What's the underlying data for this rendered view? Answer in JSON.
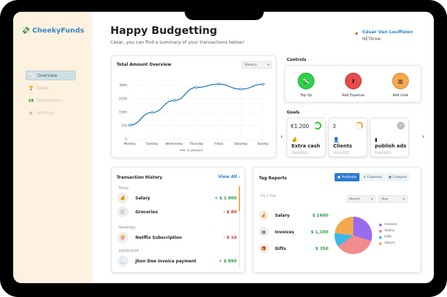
{
  "app": {
    "logo_text": "CheekyFunds",
    "logo_icon": "money-icon"
  },
  "sidebar": {
    "items": [
      {
        "label": "Overview",
        "icon": "chart-line-icon",
        "active": true
      },
      {
        "label": "Goals",
        "icon": "trophy-icon"
      },
      {
        "label": "Transactions",
        "icon": "banknote-icon"
      },
      {
        "label": "Settings",
        "icon": "gear-icon"
      }
    ]
  },
  "header": {
    "title": "Happy Budgetting",
    "subtitle": "César, you can find a summary of your transactions below!",
    "user_name": "César Van Leuffelen",
    "user_org": "NETbrew"
  },
  "overview": {
    "title": "Total Amount Overview",
    "period": "Weekly",
    "legend": "$ amount"
  },
  "chart_data": {
    "type": "line",
    "title": "Total Amount Overview",
    "categories": [
      "Monday",
      "Tuesday",
      "Wednesday",
      "Thursday",
      "Fridya",
      "Saturday",
      "Sunday"
    ],
    "yticks": [
      "0",
      "750",
      "1500",
      "2250",
      "3000"
    ],
    "series": [
      {
        "name": "$ amount",
        "values": [
          780,
          1480,
          2150,
          2870,
          3060,
          2780,
          3050
        ]
      }
    ],
    "ylim": [
      0,
      3000
    ],
    "grid": true,
    "legend_position": "bottom"
  },
  "controls": {
    "title": "Controls",
    "buttons": [
      {
        "label": "Top Up",
        "icon": "money-icon",
        "color": "#2fd14a"
      },
      {
        "label": "Add Expense",
        "icon": "upload-icon",
        "color": "#e74a4a"
      },
      {
        "label": "Add Goal",
        "icon": "goal-icon",
        "color": "#f5a94e"
      }
    ]
  },
  "goals": {
    "title": "Goals",
    "items": [
      {
        "amount": "€1.200",
        "name": "Extra cash",
        "date": "20/04/2025",
        "progress": 0.75,
        "ring": "#2fc12a"
      },
      {
        "amount": "3",
        "name": "Clients",
        "date": "31/12/2025",
        "progress": 0.66,
        "ring": "#f0a030"
      },
      {
        "amount": "",
        "name": "publish ads",
        "date": "23/04/2025",
        "progress": 1.0,
        "ring": "#bdbdbd"
      }
    ]
  },
  "transactions": {
    "title": "Transaction History",
    "view_all": "View All",
    "groups": [
      {
        "label": "Today",
        "items": [
          {
            "name": "Salary",
            "value": "+ $ 1 600",
            "positive": true,
            "icon": "moneybag-icon"
          },
          {
            "name": "Groceries",
            "value": "- $ 80",
            "positive": false,
            "icon": "cart-icon"
          }
        ]
      },
      {
        "label": "Yesterday",
        "items": [
          {
            "name": "Netflix Subscription",
            "value": "- $ 10",
            "positive": false,
            "icon": "popcorn-icon"
          }
        ]
      },
      {
        "label": "18/09/2024",
        "items": [
          {
            "name": "Jhon Doe invoice payment",
            "value": "+ $ 890",
            "positive": true,
            "icon": "receipt-icon"
          }
        ]
      }
    ]
  },
  "tags": {
    "title": "Tag Reports",
    "tabs": [
      "Profitable",
      "Expenses",
      "Compare"
    ],
    "top_label": "Top 3 Tags",
    "month": "Month",
    "year": "Year",
    "items": [
      {
        "name": "Salary",
        "value": "$ 1600",
        "icon": "moneybag-icon"
      },
      {
        "name": "Invoices",
        "value": "$ 1,100",
        "icon": "invoice-icon"
      },
      {
        "name": "Gifts",
        "value": "$ 350",
        "icon": "gift-icon"
      }
    ],
    "pie": [
      {
        "label": "Invoices",
        "value": 30,
        "color": "#9b6bef"
      },
      {
        "label": "Salary",
        "value": 35,
        "color": "#f28b8b"
      },
      {
        "label": "Gifts",
        "value": 12,
        "color": "#3bb7e8"
      },
      {
        "label": "Others",
        "value": 23,
        "color": "#f5a94e"
      }
    ]
  }
}
